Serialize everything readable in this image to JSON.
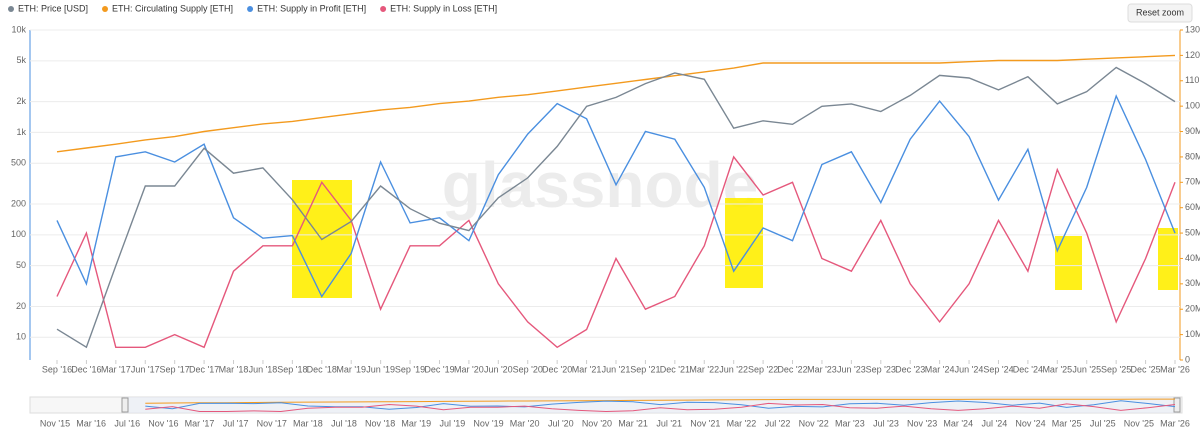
{
  "chart_data": {
    "type": "line",
    "watermark": "glassnode",
    "yscale": "log",
    "grid": true,
    "legend": "top-left",
    "x": [
      "Sep '16",
      "Dec '16",
      "Mar '17",
      "Jun '17",
      "Sep '17",
      "Dec '17",
      "Mar '18",
      "Jun '18",
      "Sep '18",
      "Dec '18",
      "Mar '19",
      "Jun '19",
      "Sep '19",
      "Dec '19",
      "Mar '20",
      "Jun '20",
      "Sep '20",
      "Dec '20",
      "Mar '21",
      "Jun '21",
      "Sep '21",
      "Dec '21",
      "Mar '22",
      "Jun '22",
      "Sep '22",
      "Dec '22",
      "Mar '23",
      "Jun '23",
      "Sep '23",
      "Dec '23",
      "Mar '24",
      "Jun '24",
      "Sep '24",
      "Dec '24",
      "Mar '25",
      "Jun '25",
      "Sep '25",
      "Dec '25",
      "Mar '26"
    ],
    "ylim": [
      6,
      10000
    ],
    "yticks": [
      10,
      20,
      50,
      100,
      200,
      500,
      {
        "value": 1000,
        "label": "1k"
      },
      {
        "value": 2000,
        "label": "2k"
      },
      {
        "value": 5000,
        "label": "5k"
      },
      {
        "value": 10000,
        "label": "10k"
      }
    ],
    "y2lim": [
      0,
      130000000
    ],
    "y2ticks": [
      0,
      {
        "value": 10000000,
        "label": "10M"
      },
      {
        "value": 20000000,
        "label": "20M"
      },
      {
        "value": 30000000,
        "label": "30M"
      },
      {
        "value": 40000000,
        "label": "40M"
      },
      {
        "value": 50000000,
        "label": "50M"
      },
      {
        "value": 60000000,
        "label": "60M"
      },
      {
        "value": 70000000,
        "label": "70M"
      },
      {
        "value": 80000000,
        "label": "80M"
      },
      {
        "value": 90000000,
        "label": "90M"
      },
      {
        "value": 100000000,
        "label": "100M"
      },
      {
        "value": 110000000,
        "label": "110M"
      },
      {
        "value": 120000000,
        "label": "120M"
      },
      {
        "value": 130000000,
        "label": "130M"
      }
    ],
    "series": [
      {
        "name": "ETH: Price [USD]",
        "color": "#7a8793",
        "axis": "y",
        "values": [
          12,
          8,
          50,
          300,
          300,
          700,
          400,
          450,
          220,
          90,
          135,
          300,
          180,
          130,
          110,
          230,
          360,
          730,
          1800,
          2200,
          3000,
          3800,
          3300,
          1100,
          1300,
          1200,
          1800,
          1900,
          1600,
          2300,
          3600,
          3400,
          2600,
          3500,
          1900,
          2500,
          4300,
          3000,
          2000
        ]
      },
      {
        "name": "ETH: Circulating Supply [ETH]",
        "color": "#f39a1e",
        "axis": "y2",
        "values": [
          82000000,
          83500000,
          85000000,
          86700000,
          88000000,
          90000000,
          91500000,
          93000000,
          94000000,
          95500000,
          97000000,
          98500000,
          99500000,
          101000000,
          102000000,
          103500000,
          104500000,
          106000000,
          107500000,
          109000000,
          110500000,
          112000000,
          113500000,
          115000000,
          117000000,
          117000000,
          117000000,
          117000000,
          117000000,
          117000000,
          117000000,
          117500000,
          118000000,
          118000000,
          118000000,
          118500000,
          119000000,
          119500000,
          120000000
        ]
      },
      {
        "name": "ETH: Supply in Profit [ETH]",
        "color": "#4a8fe0",
        "axis": "y2",
        "values": [
          55000000,
          30000000,
          80000000,
          82000000,
          78000000,
          85000000,
          56000000,
          48000000,
          49000000,
          25000000,
          42000000,
          78000000,
          54000000,
          56000000,
          47000000,
          73000000,
          89000000,
          101000000,
          95000000,
          69000000,
          90000000,
          87000000,
          68000000,
          35000000,
          52000000,
          47000000,
          77000000,
          82000000,
          62000000,
          87000000,
          102000000,
          88000000,
          63000000,
          83000000,
          43000000,
          68000000,
          104000000,
          79000000,
          50000000
        ]
      },
      {
        "name": "ETH: Supply in Loss [ETH]",
        "color": "#e5587c",
        "axis": "y2",
        "values": [
          25000000,
          50000000,
          5000000,
          5000000,
          10000000,
          5000000,
          35000000,
          45000000,
          45000000,
          70000000,
          55000000,
          20000000,
          45000000,
          45000000,
          55000000,
          30000000,
          15000000,
          5000000,
          12000000,
          40000000,
          20000000,
          25000000,
          45000000,
          80000000,
          65000000,
          70000000,
          40000000,
          35000000,
          55000000,
          30000000,
          15000000,
          30000000,
          55000000,
          35000000,
          75000000,
          50000000,
          15000000,
          40000000,
          70000000
        ]
      }
    ],
    "navigator_labels": [
      "Nov '15",
      "Mar '16",
      "Jul '16",
      "Nov '16",
      "Mar '17",
      "Jul '17",
      "Nov '17",
      "Mar '18",
      "Jul '18",
      "Nov '18",
      "Mar '19",
      "Jul '19",
      "Nov '19",
      "Mar '20",
      "Jul '20",
      "Nov '20",
      "Mar '21",
      "Jul '21",
      "Nov '21",
      "Mar '22",
      "Jul '22",
      "Nov '22",
      "Mar '23",
      "Jul '23",
      "Nov '23",
      "Mar '24",
      "Jul '24",
      "Nov '24",
      "Mar '25",
      "Jul '25",
      "Nov '25",
      "Mar '26"
    ]
  },
  "reset_zoom": "Reset zoom"
}
